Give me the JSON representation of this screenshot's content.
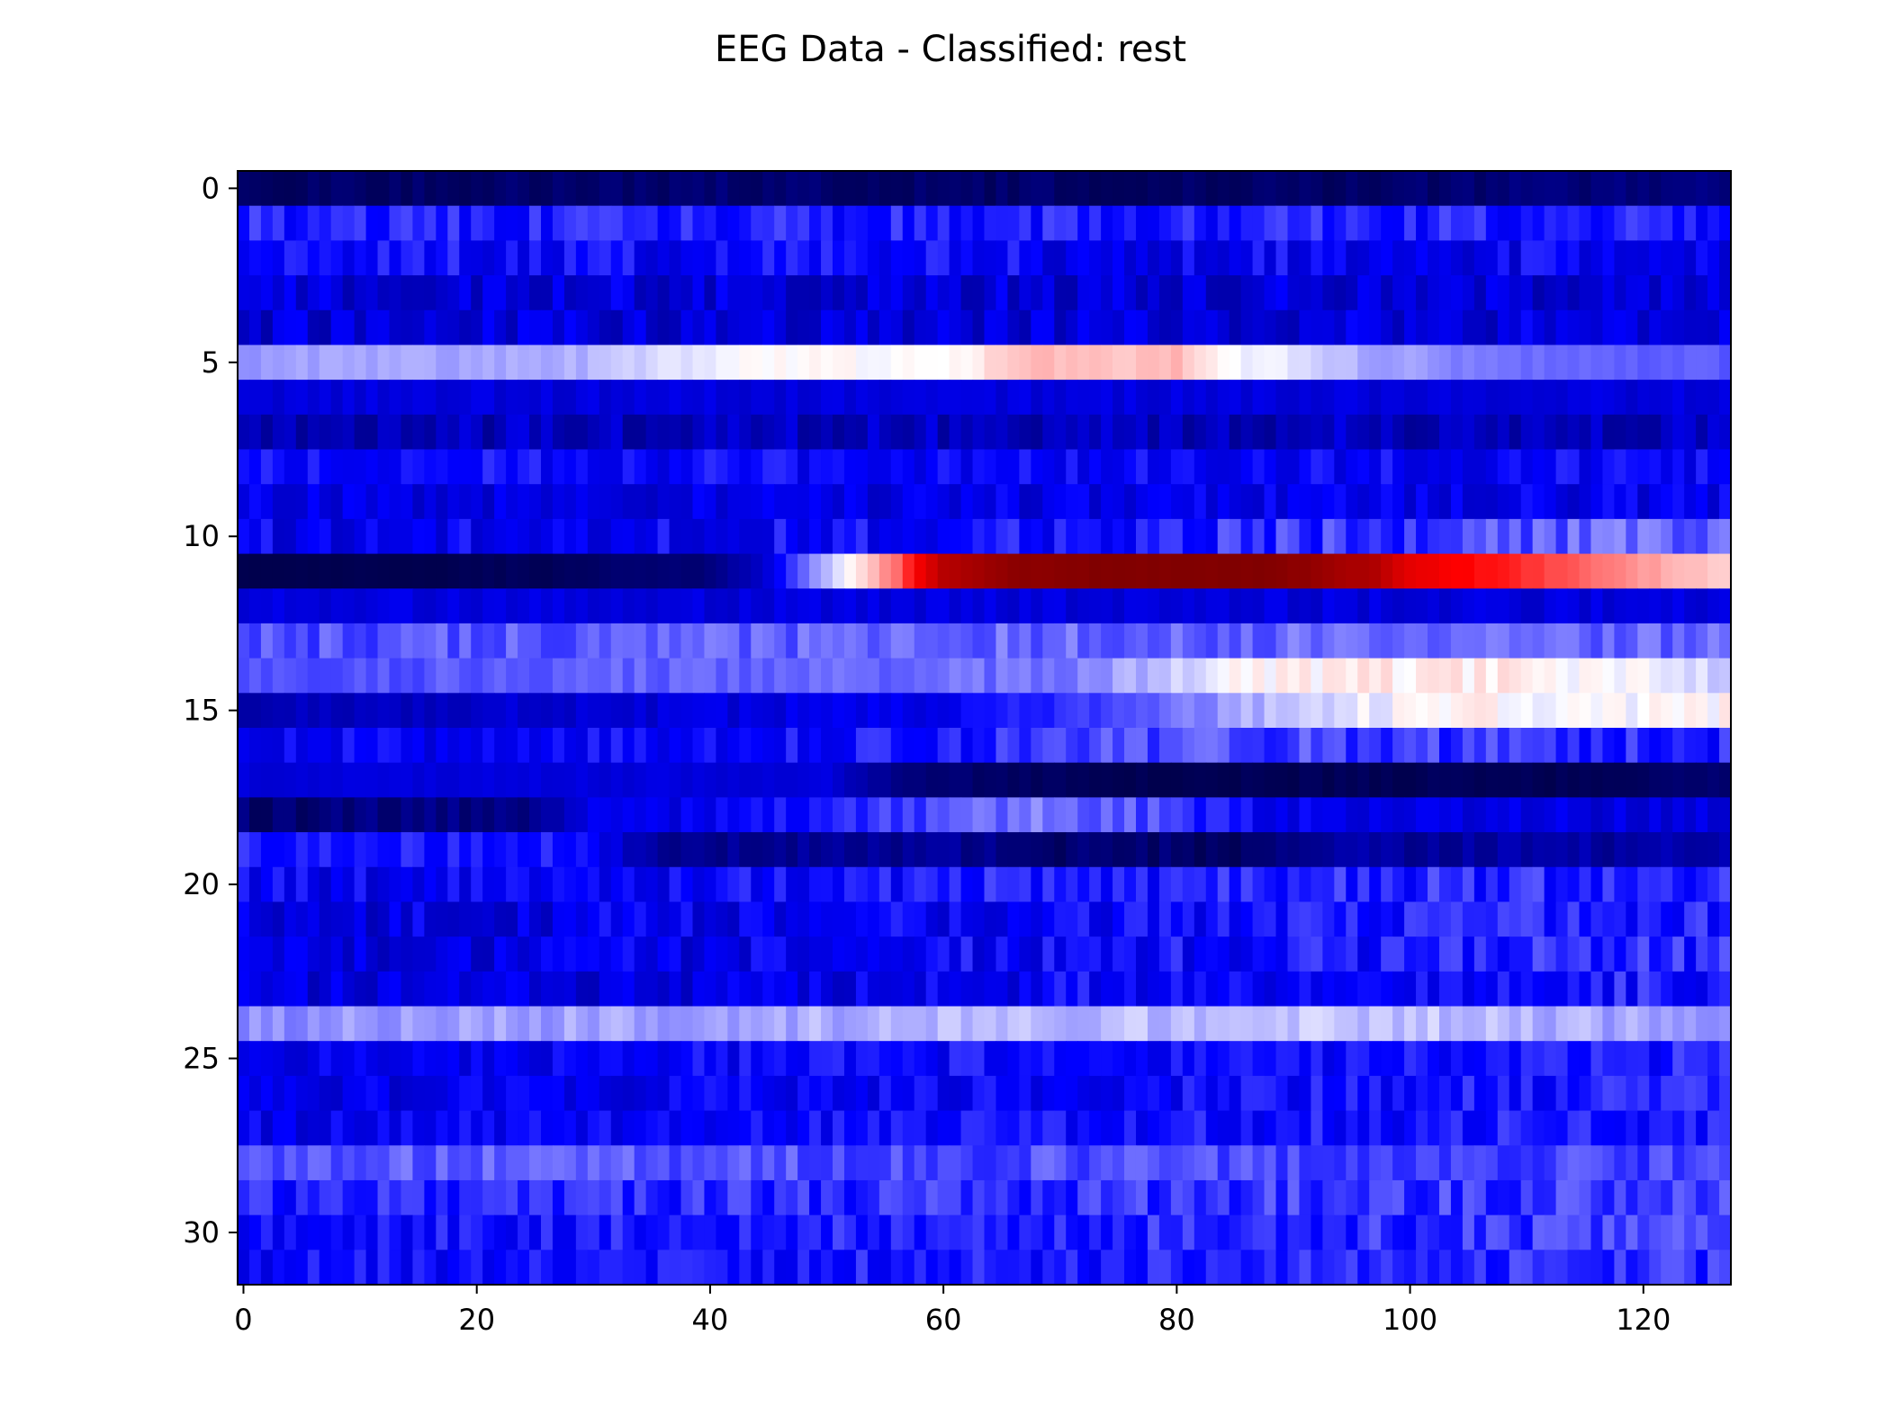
{
  "chart_data": {
    "type": "heatmap",
    "title": "EEG Data - Classified: rest",
    "xlabel": "",
    "ylabel": "",
    "n_rows": 32,
    "n_cols": 128,
    "xlim": [
      -0.5,
      127.5
    ],
    "ylim": [
      31.5,
      -0.5
    ],
    "x_ticks": [
      0,
      20,
      40,
      60,
      80,
      100,
      120
    ],
    "y_ticks": [
      0,
      5,
      10,
      15,
      20,
      25,
      30
    ],
    "colormap": "seismic",
    "value_range": [
      -1,
      1
    ],
    "grid": false,
    "row_profiles": [
      {
        "row": 0,
        "knots": [
          [
            0,
            -0.92
          ],
          [
            20,
            -0.92
          ],
          [
            40,
            -0.9
          ],
          [
            60,
            -0.92
          ],
          [
            90,
            -0.93
          ],
          [
            127,
            -0.85
          ]
        ],
        "noise": 0.05
      },
      {
        "row": 1,
        "knots": [
          [
            0,
            -0.45
          ],
          [
            127,
            -0.45
          ]
        ],
        "noise": 0.1
      },
      {
        "row": 2,
        "knots": [
          [
            0,
            -0.5
          ],
          [
            127,
            -0.55
          ]
        ],
        "noise": 0.12
      },
      {
        "row": 3,
        "knots": [
          [
            0,
            -0.6
          ],
          [
            127,
            -0.62
          ]
        ],
        "noise": 0.12
      },
      {
        "row": 4,
        "knots": [
          [
            0,
            -0.62
          ],
          [
            127,
            -0.6
          ]
        ],
        "noise": 0.12
      },
      {
        "row": 5,
        "knots": [
          [
            0,
            -0.2
          ],
          [
            30,
            -0.15
          ],
          [
            42,
            0.0
          ],
          [
            50,
            0.0
          ],
          [
            60,
            0.0
          ],
          [
            66,
            0.12
          ],
          [
            80,
            0.13
          ],
          [
            84,
            0.0
          ],
          [
            90,
            -0.05
          ],
          [
            95,
            -0.15
          ],
          [
            110,
            -0.3
          ],
          [
            127,
            -0.32
          ]
        ],
        "noise": 0.03
      },
      {
        "row": 6,
        "knots": [
          [
            0,
            -0.6
          ],
          [
            127,
            -0.6
          ]
        ],
        "noise": 0.05
      },
      {
        "row": 7,
        "knots": [
          [
            0,
            -0.68
          ],
          [
            127,
            -0.68
          ]
        ],
        "noise": 0.12
      },
      {
        "row": 8,
        "knots": [
          [
            0,
            -0.5
          ],
          [
            127,
            -0.52
          ]
        ],
        "noise": 0.1
      },
      {
        "row": 9,
        "knots": [
          [
            0,
            -0.58
          ],
          [
            127,
            -0.56
          ]
        ],
        "noise": 0.1
      },
      {
        "row": 10,
        "knots": [
          [
            0,
            -0.55
          ],
          [
            60,
            -0.5
          ],
          [
            127,
            -0.3
          ]
        ],
        "noise": 0.12
      },
      {
        "row": 11,
        "knots": [
          [
            0,
            -1.0
          ],
          [
            17,
            -1.0
          ],
          [
            18,
            -0.97
          ],
          [
            30,
            -0.96
          ],
          [
            32,
            -0.9
          ],
          [
            40,
            -0.88
          ],
          [
            45,
            -0.6
          ],
          [
            48,
            -0.3
          ],
          [
            52,
            0.0
          ],
          [
            56,
            0.3
          ],
          [
            60,
            0.8
          ],
          [
            66,
            0.95
          ],
          [
            75,
            1.0
          ],
          [
            85,
            1.0
          ],
          [
            90,
            0.95
          ],
          [
            97,
            0.8
          ],
          [
            100,
            0.6
          ],
          [
            110,
            0.4
          ],
          [
            120,
            0.2
          ],
          [
            127,
            0.1
          ]
        ],
        "noise": 0.02
      },
      {
        "row": 12,
        "knots": [
          [
            0,
            -0.6
          ],
          [
            127,
            -0.6
          ]
        ],
        "noise": 0.06
      },
      {
        "row": 13,
        "knots": [
          [
            0,
            -0.35
          ],
          [
            60,
            -0.3
          ],
          [
            127,
            -0.3
          ]
        ],
        "noise": 0.08
      },
      {
        "row": 14,
        "knots": [
          [
            0,
            -0.35
          ],
          [
            70,
            -0.28
          ],
          [
            80,
            -0.1
          ],
          [
            85,
            0.0
          ],
          [
            95,
            0.03
          ],
          [
            110,
            0.03
          ],
          [
            120,
            -0.03
          ],
          [
            127,
            -0.1
          ]
        ],
        "noise": 0.05
      },
      {
        "row": 15,
        "knots": [
          [
            0,
            -0.7
          ],
          [
            60,
            -0.55
          ],
          [
            80,
            -0.3
          ],
          [
            90,
            -0.1
          ],
          [
            100,
            0.0
          ],
          [
            127,
            0.0
          ]
        ],
        "noise": 0.06
      },
      {
        "row": 16,
        "knots": [
          [
            0,
            -0.55
          ],
          [
            60,
            -0.45
          ],
          [
            80,
            -0.35
          ],
          [
            127,
            -0.45
          ]
        ],
        "noise": 0.1
      },
      {
        "row": 17,
        "knots": [
          [
            0,
            -0.6
          ],
          [
            50,
            -0.6
          ],
          [
            56,
            -0.85
          ],
          [
            66,
            -0.95
          ],
          [
            80,
            -0.99
          ],
          [
            100,
            -0.97
          ],
          [
            115,
            -0.97
          ],
          [
            127,
            -0.9
          ]
        ],
        "noise": 0.03
      },
      {
        "row": 18,
        "knots": [
          [
            0,
            -0.9
          ],
          [
            25,
            -0.85
          ],
          [
            30,
            -0.6
          ],
          [
            50,
            -0.45
          ],
          [
            60,
            -0.35
          ],
          [
            70,
            -0.25
          ],
          [
            80,
            -0.4
          ],
          [
            90,
            -0.55
          ],
          [
            127,
            -0.6
          ]
        ],
        "noise": 0.08
      },
      {
        "row": 19,
        "knots": [
          [
            0,
            -0.45
          ],
          [
            28,
            -0.45
          ],
          [
            36,
            -0.8
          ],
          [
            60,
            -0.8
          ],
          [
            70,
            -0.9
          ],
          [
            85,
            -0.92
          ],
          [
            95,
            -0.78
          ],
          [
            127,
            -0.75
          ]
        ],
        "noise": 0.07
      },
      {
        "row": 20,
        "knots": [
          [
            0,
            -0.55
          ],
          [
            127,
            -0.4
          ]
        ],
        "noise": 0.12
      },
      {
        "row": 21,
        "knots": [
          [
            0,
            -0.6
          ],
          [
            127,
            -0.45
          ]
        ],
        "noise": 0.12
      },
      {
        "row": 22,
        "knots": [
          [
            0,
            -0.62
          ],
          [
            127,
            -0.42
          ]
        ],
        "noise": 0.12
      },
      {
        "row": 23,
        "knots": [
          [
            0,
            -0.62
          ],
          [
            127,
            -0.45
          ]
        ],
        "noise": 0.12
      },
      {
        "row": 24,
        "knots": [
          [
            0,
            -0.22
          ],
          [
            60,
            -0.15
          ],
          [
            100,
            -0.12
          ],
          [
            127,
            -0.2
          ]
        ],
        "noise": 0.06
      },
      {
        "row": 25,
        "knots": [
          [
            0,
            -0.55
          ],
          [
            127,
            -0.45
          ]
        ],
        "noise": 0.1
      },
      {
        "row": 26,
        "knots": [
          [
            0,
            -0.58
          ],
          [
            127,
            -0.45
          ]
        ],
        "noise": 0.1
      },
      {
        "row": 27,
        "knots": [
          [
            0,
            -0.55
          ],
          [
            127,
            -0.45
          ]
        ],
        "noise": 0.1
      },
      {
        "row": 28,
        "knots": [
          [
            0,
            -0.32
          ],
          [
            127,
            -0.38
          ]
        ],
        "noise": 0.08
      },
      {
        "row": 29,
        "knots": [
          [
            0,
            -0.45
          ],
          [
            127,
            -0.38
          ]
        ],
        "noise": 0.1
      },
      {
        "row": 30,
        "knots": [
          [
            0,
            -0.5
          ],
          [
            127,
            -0.38
          ]
        ],
        "noise": 0.1
      },
      {
        "row": 31,
        "knots": [
          [
            0,
            -0.5
          ],
          [
            127,
            -0.42
          ]
        ],
        "noise": 0.1
      }
    ]
  }
}
